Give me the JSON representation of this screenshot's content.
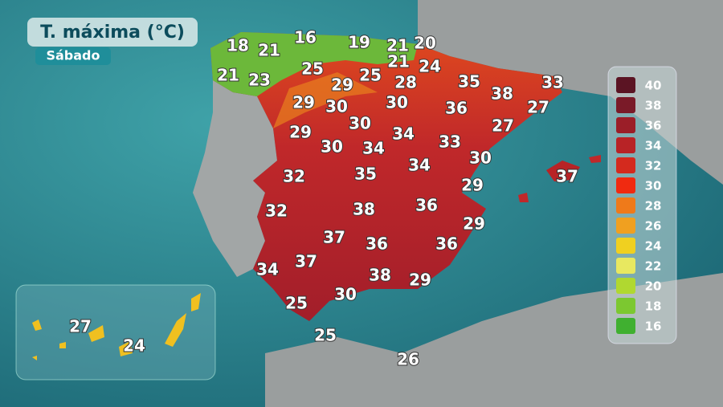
{
  "title": "T. máxima (°C)",
  "subtitle": "Sábado",
  "legend": [
    {
      "value": 40,
      "color": "#5b1423"
    },
    {
      "value": 38,
      "color": "#7a1a28"
    },
    {
      "value": 36,
      "color": "#9b1e28"
    },
    {
      "value": 34,
      "color": "#b82326"
    },
    {
      "value": 32,
      "color": "#d42a1e"
    },
    {
      "value": 30,
      "color": "#f02a10"
    },
    {
      "value": 28,
      "color": "#ef7a1a"
    },
    {
      "value": 26,
      "color": "#f0a020"
    },
    {
      "value": 24,
      "color": "#f0d020"
    },
    {
      "value": 22,
      "color": "#e8e860"
    },
    {
      "value": 20,
      "color": "#b0d830"
    },
    {
      "value": 18,
      "color": "#7cc830"
    },
    {
      "value": 16,
      "color": "#40b030"
    }
  ],
  "temperatures": [
    18,
    16,
    19,
    21,
    20,
    21,
    21,
    24,
    21,
    23,
    25,
    29,
    25,
    28,
    35,
    33,
    29,
    30,
    30,
    36,
    38,
    27,
    29,
    30,
    34,
    27,
    30,
    34,
    33,
    30,
    32,
    35,
    34,
    29,
    37,
    32,
    38,
    36,
    29,
    37,
    36,
    36,
    34,
    37,
    38,
    29,
    25,
    30,
    25,
    26,
    27,
    24
  ]
}
